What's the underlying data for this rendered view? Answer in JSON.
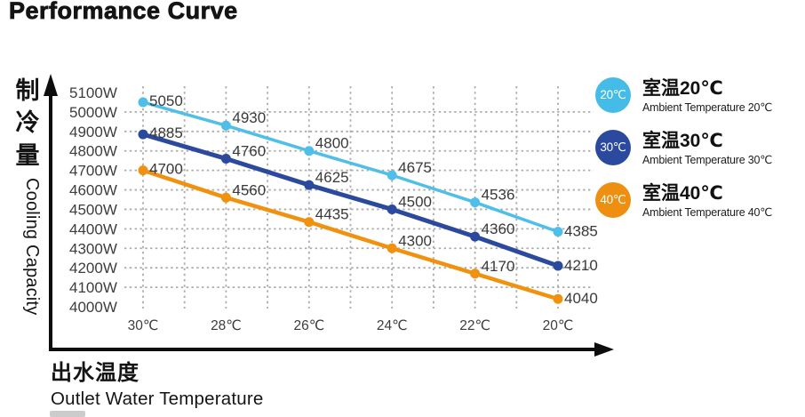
{
  "page": {
    "title": "Performance Curve"
  },
  "axes": {
    "y_title_zh": "制冷量",
    "y_title_en": "Cooling Capacity",
    "x_title_zh": "出水温度",
    "x_title_en": "Outlet Water Temperature"
  },
  "legend": [
    {
      "badge": "20℃",
      "title": "室温20℃",
      "subtitle": "Ambient Temperature 20℃",
      "color": "#45BCE8"
    },
    {
      "badge": "30℃",
      "title": "室温30℃",
      "subtitle": "Ambient Temperature 30℃",
      "color": "#2B4A9D"
    },
    {
      "badge": "40℃",
      "title": "室温40℃",
      "subtitle": "Ambient Temperature 40℃",
      "color": "#EE8F12"
    }
  ],
  "chart_data": {
    "type": "line",
    "title": "Performance Curve",
    "xlabel": "出水温度 Outlet Water Temperature",
    "ylabel": "制冷量 Cooling Capacity",
    "categories": [
      "30℃",
      "28℃",
      "26℃",
      "24℃",
      "22℃",
      "20℃"
    ],
    "series": [
      {
        "name": "室温20℃ Ambient Temperature 20℃",
        "color": "#4FBFE9",
        "line_width": 3.5,
        "values": [
          5050,
          4930,
          4800,
          4675,
          4536,
          4385
        ]
      },
      {
        "name": "室温30℃ Ambient Temperature 30℃",
        "color": "#2B4A9D",
        "line_width": 5,
        "values": [
          4885,
          4760,
          4625,
          4500,
          4360,
          4210
        ]
      },
      {
        "name": "室温40℃ Ambient Temperature 40℃",
        "color": "#F0910F",
        "line_width": 4.5,
        "values": [
          4700,
          4560,
          4435,
          4300,
          4170,
          4040
        ]
      }
    ],
    "y_tick_labels": [
      "5100W",
      "5000W",
      "4900W",
      "4800W",
      "4700W",
      "4600W",
      "4500W",
      "4400W",
      "4300W",
      "4200W",
      "4100W",
      "4000W"
    ],
    "ylim": [
      4000,
      5100
    ],
    "y_step": 100,
    "grid": true,
    "grid_color": "#ACACAC",
    "axis_color": "#0d0d0d",
    "tick_label_color": "#3d3d3d",
    "point_label_color": "#3a3a3a",
    "point_labels_shown": true,
    "legend_position": "right"
  }
}
